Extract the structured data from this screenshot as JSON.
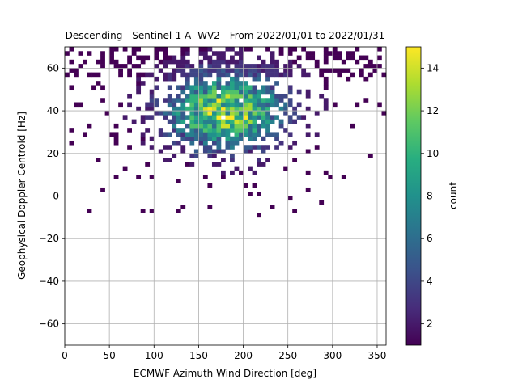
{
  "chart_data": {
    "type": "heatmap",
    "title": "Descending - Sentinel-1 A- WV2 - From 2022/01/01 to 2022/01/31",
    "xlabel": "ECMWF Azimuth Wind Direction [deg]",
    "ylabel": "Geophysical Doppler Centroid [Hz]",
    "xlim": [
      0,
      360
    ],
    "ylim": [
      -70,
      70
    ],
    "xticks": [
      0,
      50,
      100,
      150,
      200,
      250,
      300,
      350
    ],
    "yticks": [
      -60,
      -40,
      -20,
      0,
      20,
      40,
      60
    ],
    "grid": true,
    "bin_size": {
      "x": 5,
      "y": 2
    },
    "colorbar": {
      "label": "count",
      "min": 1,
      "max": 15,
      "ticks": [
        2,
        4,
        6,
        8,
        10,
        12,
        14
      ],
      "colormap": "viridis"
    },
    "density_model": {
      "peak_count": 15,
      "center_direction_deg": 180,
      "center_doppler_hz": 40,
      "direction_spread_deg": 45,
      "doppler_spread_hz": 12,
      "doppler_min_hz": -10,
      "doppler_max_hz": 70
    }
  }
}
